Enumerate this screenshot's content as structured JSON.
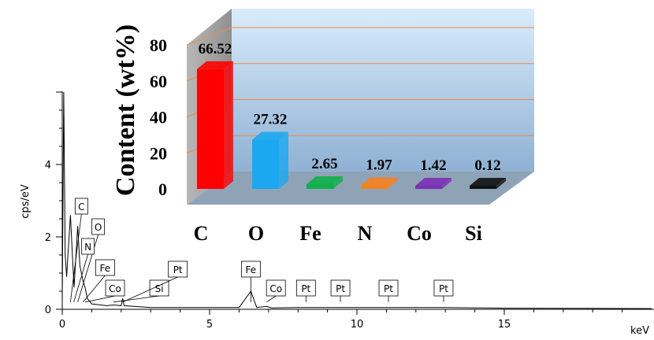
{
  "chart_data": [
    {
      "type": "line",
      "xlabel": "keV",
      "ylabel": "cps/eV",
      "xlim": [
        0,
        20
      ],
      "ylim": [
        0,
        6
      ],
      "x_ticks": [
        "0",
        "5",
        "10",
        "15"
      ],
      "y_ticks": [
        "0",
        "2",
        "4"
      ],
      "x": [
        0,
        0.05,
        0.1,
        0.15,
        0.2,
        0.277,
        0.35,
        0.4,
        0.525,
        0.6,
        0.7,
        0.776,
        0.85,
        1.0,
        1.5,
        1.74,
        2.0,
        2.05,
        2.1,
        3.0,
        6.0,
        6.4,
        6.6,
        6.93,
        7.1,
        8.0,
        9.44,
        11.07,
        12.94,
        15.0,
        20.0
      ],
      "y": [
        0.2,
        6.0,
        1.5,
        0.9,
        1.6,
        2.6,
        1.4,
        0.6,
        2.3,
        1.2,
        0.8,
        0.6,
        0.3,
        0.15,
        0.1,
        0.12,
        0.1,
        0.3,
        0.1,
        0.05,
        0.05,
        0.5,
        0.05,
        0.08,
        0.04,
        0.05,
        0.05,
        0.05,
        0.05,
        0.03,
        0.02
      ],
      "peak_labels": [
        {
          "text": "C",
          "x": 0.277
        },
        {
          "text": "O",
          "x": 0.525
        },
        {
          "text": "N",
          "x": 0.392
        },
        {
          "text": "Fe",
          "x": 0.705
        },
        {
          "text": "Co",
          "x": 0.776
        },
        {
          "text": "Si",
          "x": 1.74
        },
        {
          "text": "Pt",
          "x": 2.05
        },
        {
          "text": "Fe",
          "x": 6.4
        },
        {
          "text": "Co",
          "x": 6.93
        },
        {
          "text": "Pt",
          "x": 8.27
        },
        {
          "text": "Pt",
          "x": 9.44
        },
        {
          "text": "Pt",
          "x": 11.07
        },
        {
          "text": "Pt",
          "x": 12.94
        }
      ]
    },
    {
      "type": "bar",
      "categories": [
        "C",
        "O",
        "Fe",
        "N",
        "Co",
        "Si"
      ],
      "values": [
        66.52,
        27.32,
        2.65,
        1.97,
        1.42,
        0.12
      ],
      "value_labels": [
        "66.52",
        "27.32",
        "2.65",
        "1.97",
        "1.42",
        "0.12"
      ],
      "colors": [
        "#ff0000",
        "#1ba8f0",
        "#0fb04a",
        "#f58220",
        "#7a2fb5",
        "#111111"
      ],
      "ylabel": "Content (wt%)",
      "y_ticks": [
        "0",
        "20",
        "40",
        "60",
        "80"
      ],
      "ylim": [
        0,
        80
      ],
      "grid": true,
      "style": "3d"
    }
  ]
}
